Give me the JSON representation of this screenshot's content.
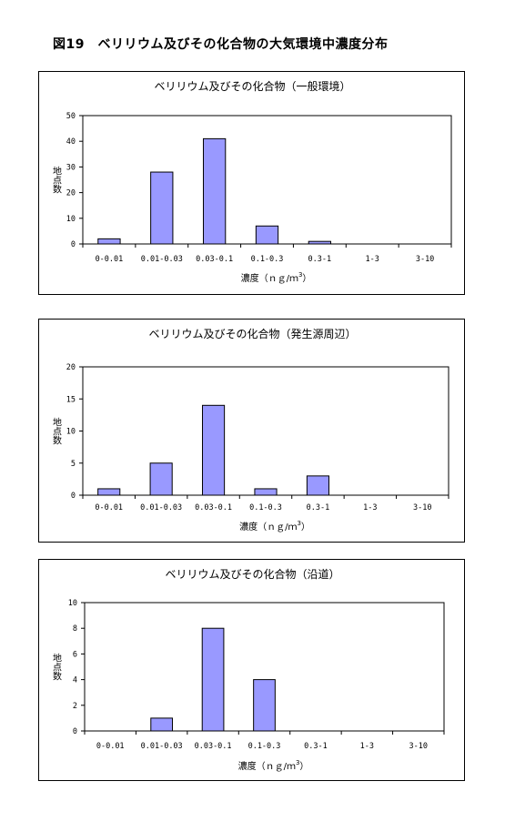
{
  "figure": {
    "title": "図19　ベリリウム及びその化合物の大気環境中濃度分布"
  },
  "colors": {
    "bar_fill": "#9999ff",
    "bar_stroke": "#000000",
    "axis": "#000000"
  },
  "chart_data": [
    {
      "type": "bar",
      "title": "ベリリウム及びその化合物（一般環境）",
      "categories": [
        "0-0.01",
        "0.01-0.03",
        "0.03-0.1",
        "0.1-0.3",
        "0.3-1",
        "1-3",
        "3-10"
      ],
      "values": [
        2,
        28,
        41,
        7,
        1,
        0,
        0
      ],
      "ylim": [
        0,
        50
      ],
      "yticks": [
        "0",
        "10",
        "20",
        "30",
        "40",
        "50"
      ],
      "ylabel": "地点数",
      "xlabel": "濃度（ｎｇ/ｍ",
      "xlabel_sup": "3",
      "xlabel_end": "）"
    },
    {
      "type": "bar",
      "title": "ベリリウム及びその化合物（発生源周辺）",
      "categories": [
        "0-0.01",
        "0.01-0.03",
        "0.03-0.1",
        "0.1-0.3",
        "0.3-1",
        "1-3",
        "3-10"
      ],
      "values": [
        1,
        5,
        14,
        1,
        3,
        0,
        0
      ],
      "ylim": [
        0,
        20
      ],
      "yticks": [
        "0",
        "5",
        "10",
        "15",
        "20"
      ],
      "ylabel": "地点数",
      "xlabel": "濃度（ｎｇ/ｍ",
      "xlabel_sup": "3",
      "xlabel_end": "）"
    },
    {
      "type": "bar",
      "title": "ベリリウム及びその化合物（沿道）",
      "categories": [
        "0-0.01",
        "0.01-0.03",
        "0.03-0.1",
        "0.1-0.3",
        "0.3-1",
        "1-3",
        "3-10"
      ],
      "values": [
        0,
        1,
        8,
        4,
        0,
        0,
        0
      ],
      "ylim": [
        0,
        10
      ],
      "yticks": [
        "0",
        "2",
        "4",
        "6",
        "8",
        "10"
      ],
      "ylabel": "地点数",
      "xlabel": "濃度（ｎｇ/ｍ",
      "xlabel_sup": "3",
      "xlabel_end": "）"
    }
  ]
}
